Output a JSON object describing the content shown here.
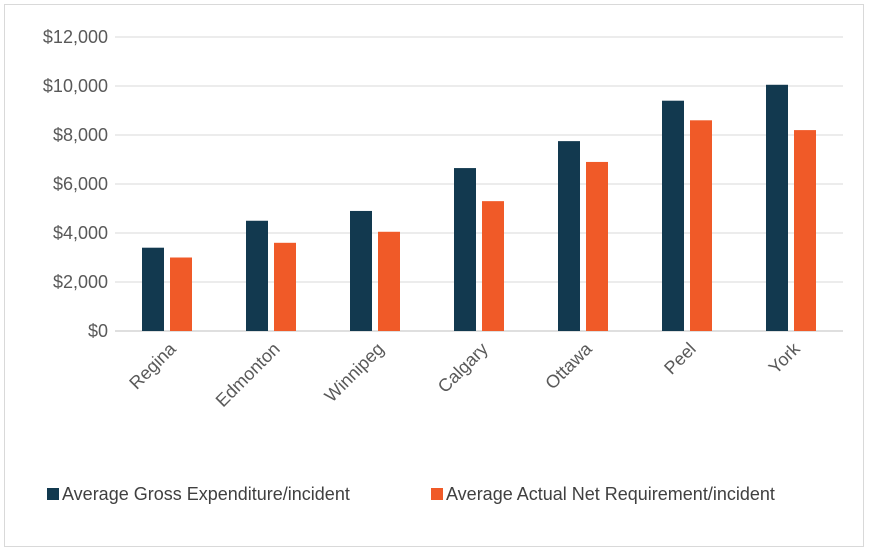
{
  "chart_data": {
    "type": "bar",
    "categories": [
      "Regina",
      "Edmonton",
      "Winnipeg",
      "Calgary",
      "Ottawa",
      "Peel",
      "York"
    ],
    "series": [
      {
        "name": "Average Gross Expenditure/incident",
        "color": "#12394f",
        "values": [
          3400,
          4500,
          4900,
          6650,
          7750,
          9400,
          10050
        ]
      },
      {
        "name": "Average Actual Net Requirement/incident",
        "color": "#f05a28",
        "values": [
          3000,
          3600,
          4050,
          5300,
          6900,
          8600,
          8200
        ]
      }
    ],
    "y_ticks": [
      "$0",
      "$2,000",
      "$4,000",
      "$6,000",
      "$8,000",
      "$10,000",
      "$12,000"
    ],
    "ylim": [
      0,
      12000
    ],
    "grid": true,
    "legend_position": "bottom",
    "title": "",
    "xlabel": "",
    "ylabel": ""
  }
}
